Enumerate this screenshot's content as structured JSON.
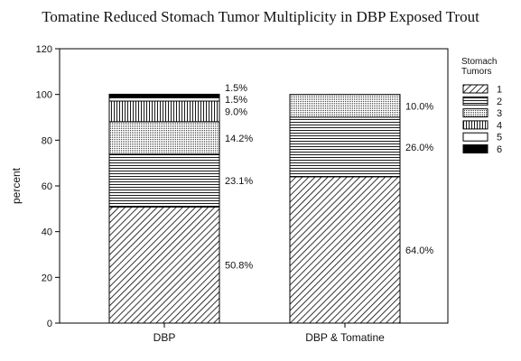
{
  "chart_data": {
    "type": "bar",
    "stacked": true,
    "title": "Tomatine Reduced Stomach Tumor Multiplicity in DBP Exposed Trout",
    "xlabel": "",
    "ylabel": "percent",
    "ylim": [
      0,
      120
    ],
    "yticks": [
      0,
      20,
      40,
      60,
      80,
      100,
      120
    ],
    "grid": false,
    "legend_position": "right",
    "legend_title": [
      "Stomach",
      "Tumors"
    ],
    "categories": [
      "DBP",
      "DBP & Tomatine"
    ],
    "series": [
      {
        "name": "1",
        "pattern": "diagonal",
        "values": [
          50.8,
          64.0
        ],
        "labels": [
          "50.8%",
          "64.0%"
        ]
      },
      {
        "name": "2",
        "pattern": "horizontal",
        "values": [
          23.1,
          26.0
        ],
        "labels": [
          "23.1%",
          "26.0%"
        ]
      },
      {
        "name": "3",
        "pattern": "dotted-lines",
        "values": [
          14.2,
          10.0
        ],
        "labels": [
          "14.2%",
          "10.0%"
        ]
      },
      {
        "name": "4",
        "pattern": "vertical",
        "values": [
          9.0,
          0
        ],
        "labels": [
          "9.0%",
          ""
        ]
      },
      {
        "name": "5",
        "pattern": "none",
        "values": [
          1.5,
          0
        ],
        "labels": [
          "1.5%",
          ""
        ]
      },
      {
        "name": "6",
        "pattern": "solid",
        "values": [
          1.5,
          0
        ],
        "labels": [
          "1.5%",
          ""
        ]
      }
    ]
  }
}
